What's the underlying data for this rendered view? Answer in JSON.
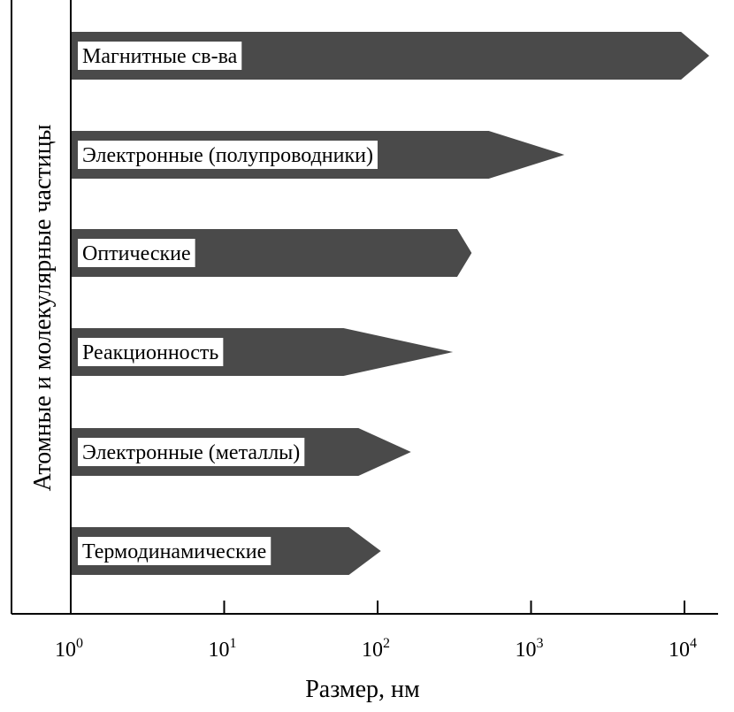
{
  "chart_data": {
    "type": "bar",
    "orientation": "horizontal",
    "xscale": "log",
    "xlim": [
      1,
      10000
    ],
    "xlabel": "Размер, нм",
    "ylabel": "Атомные и молекулярные частицы",
    "ticks": [
      {
        "value": 1,
        "base": "10",
        "exp": "0"
      },
      {
        "value": 10,
        "base": "10",
        "exp": "1"
      },
      {
        "value": 100,
        "base": "10",
        "exp": "2"
      },
      {
        "value": 1000,
        "base": "10",
        "exp": "3"
      },
      {
        "value": 10000,
        "base": "10",
        "exp": "4"
      }
    ],
    "items": [
      {
        "label": "Магнитные св-ва",
        "shaft_end": 9500,
        "tip": 14500
      },
      {
        "label": "Электронные (полупроводники)",
        "shaft_end": 530,
        "tip": 1650
      },
      {
        "label": "Оптические",
        "shaft_end": 330,
        "tip": 410
      },
      {
        "label": "Реакционность",
        "shaft_end": 60,
        "tip": 310
      },
      {
        "label": "Электронные (металлы)",
        "shaft_end": 75,
        "tip": 165
      },
      {
        "label": "Термодинамические",
        "shaft_end": 65,
        "tip": 105
      }
    ],
    "colors": {
      "arrow": "#4a4a4a",
      "label_box": "#ffffff",
      "text": "#000000"
    },
    "grid": false
  }
}
